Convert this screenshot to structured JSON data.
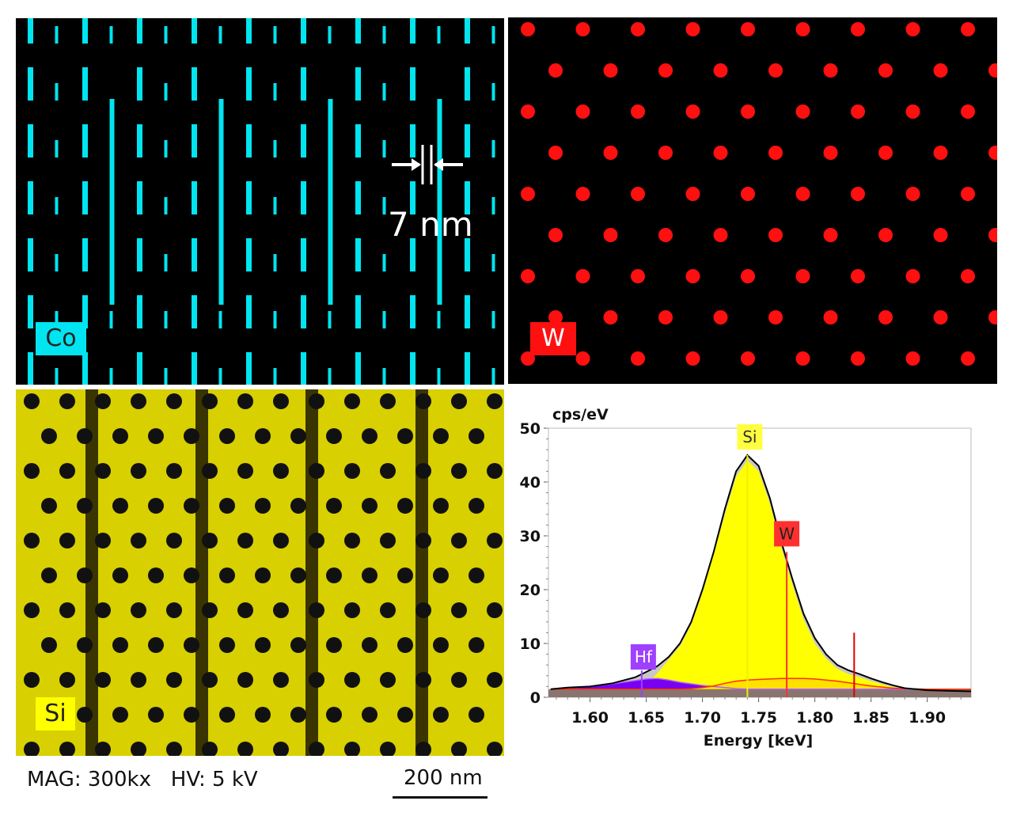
{
  "maps": {
    "co": {
      "label": "Co",
      "color": "#00e5f0",
      "scale_label": "7 nm"
    },
    "w": {
      "label": "W",
      "color": "#ff1010"
    },
    "si": {
      "label": "Si",
      "color": "#ffff00"
    }
  },
  "footer": {
    "conditions": "MAG: 300kx   HV: 5 kV",
    "scale_bar": "200 nm"
  },
  "chart_data": {
    "type": "area",
    "ylabel": "cps/eV",
    "xlabel": "Energy [keV]",
    "xlim": [
      1.563,
      1.939
    ],
    "ylim": [
      0,
      50
    ],
    "xticks": [
      "1.60",
      "1.65",
      "1.70",
      "1.75",
      "1.80",
      "1.85",
      "1.90"
    ],
    "yticks": [
      "0",
      "10",
      "20",
      "30",
      "40",
      "50"
    ],
    "grid": false,
    "x": [
      1.565,
      1.58,
      1.6,
      1.62,
      1.64,
      1.65,
      1.66,
      1.67,
      1.68,
      1.69,
      1.7,
      1.71,
      1.72,
      1.73,
      1.74,
      1.75,
      1.76,
      1.77,
      1.78,
      1.79,
      1.8,
      1.81,
      1.82,
      1.83,
      1.84,
      1.85,
      1.86,
      1.87,
      1.88,
      1.9,
      1.92,
      1.939
    ],
    "series": [
      {
        "name": "total",
        "color": "#000000",
        "values": [
          1.5,
          1.8,
          2.0,
          2.6,
          3.7,
          4.7,
          5.8,
          7.5,
          10,
          14,
          20,
          27,
          35,
          42,
          45,
          43,
          37,
          29,
          22,
          15.5,
          11,
          8,
          6,
          5,
          4.3,
          3.5,
          2.8,
          2.2,
          1.7,
          1.3,
          1.2,
          1.1
        ]
      },
      {
        "name": "Si",
        "color": "#ffff00",
        "values": [
          1.5,
          1.5,
          1.5,
          1.6,
          1.8,
          2.3,
          4.5,
          7,
          9.5,
          13.5,
          19.5,
          26.5,
          34,
          41,
          44,
          42,
          36,
          28,
          21,
          14.5,
          10,
          7.2,
          5.3,
          4.3,
          3.7,
          3.0,
          2.4,
          1.9,
          1.6,
          1.3,
          1.2,
          1.1
        ]
      },
      {
        "name": "Hf",
        "color": "#7a00f0",
        "values": [
          1.5,
          1.7,
          2.0,
          2.5,
          3.1,
          3.4,
          3.5,
          3.2,
          2.8,
          2.5,
          2.2,
          2.0,
          1.8,
          1.6,
          1.5,
          1.5,
          1.5,
          1.5,
          1.5,
          1.5,
          1.5,
          1.5,
          1.5,
          1.5,
          1.5,
          1.5,
          1.5,
          1.5,
          1.5,
          1.5,
          1.5,
          1.5
        ]
      },
      {
        "name": "W",
        "color": "#ff3000",
        "values": [
          1.5,
          1.5,
          1.5,
          1.5,
          1.5,
          1.5,
          1.5,
          1.5,
          1.5,
          1.6,
          1.8,
          2.1,
          2.6,
          3.0,
          3.2,
          3.3,
          3.4,
          3.5,
          3.5,
          3.5,
          3.4,
          3.2,
          3.0,
          2.7,
          2.4,
          2.1,
          1.9,
          1.7,
          1.6,
          1.5,
          1.5,
          1.5
        ]
      }
    ],
    "background_level": 1.5,
    "markers": [
      {
        "label": "Si",
        "energy": 1.74,
        "height": 45,
        "color": "#f0f000"
      },
      {
        "label": "W",
        "energy": 1.775,
        "height": 27,
        "color": "#ff3030"
      },
      {
        "label": "",
        "energy": 1.835,
        "height": 12,
        "color": "#e00000"
      },
      {
        "label": "Hf",
        "energy": 1.646,
        "height": 5,
        "color": "#9a40ff"
      }
    ]
  }
}
